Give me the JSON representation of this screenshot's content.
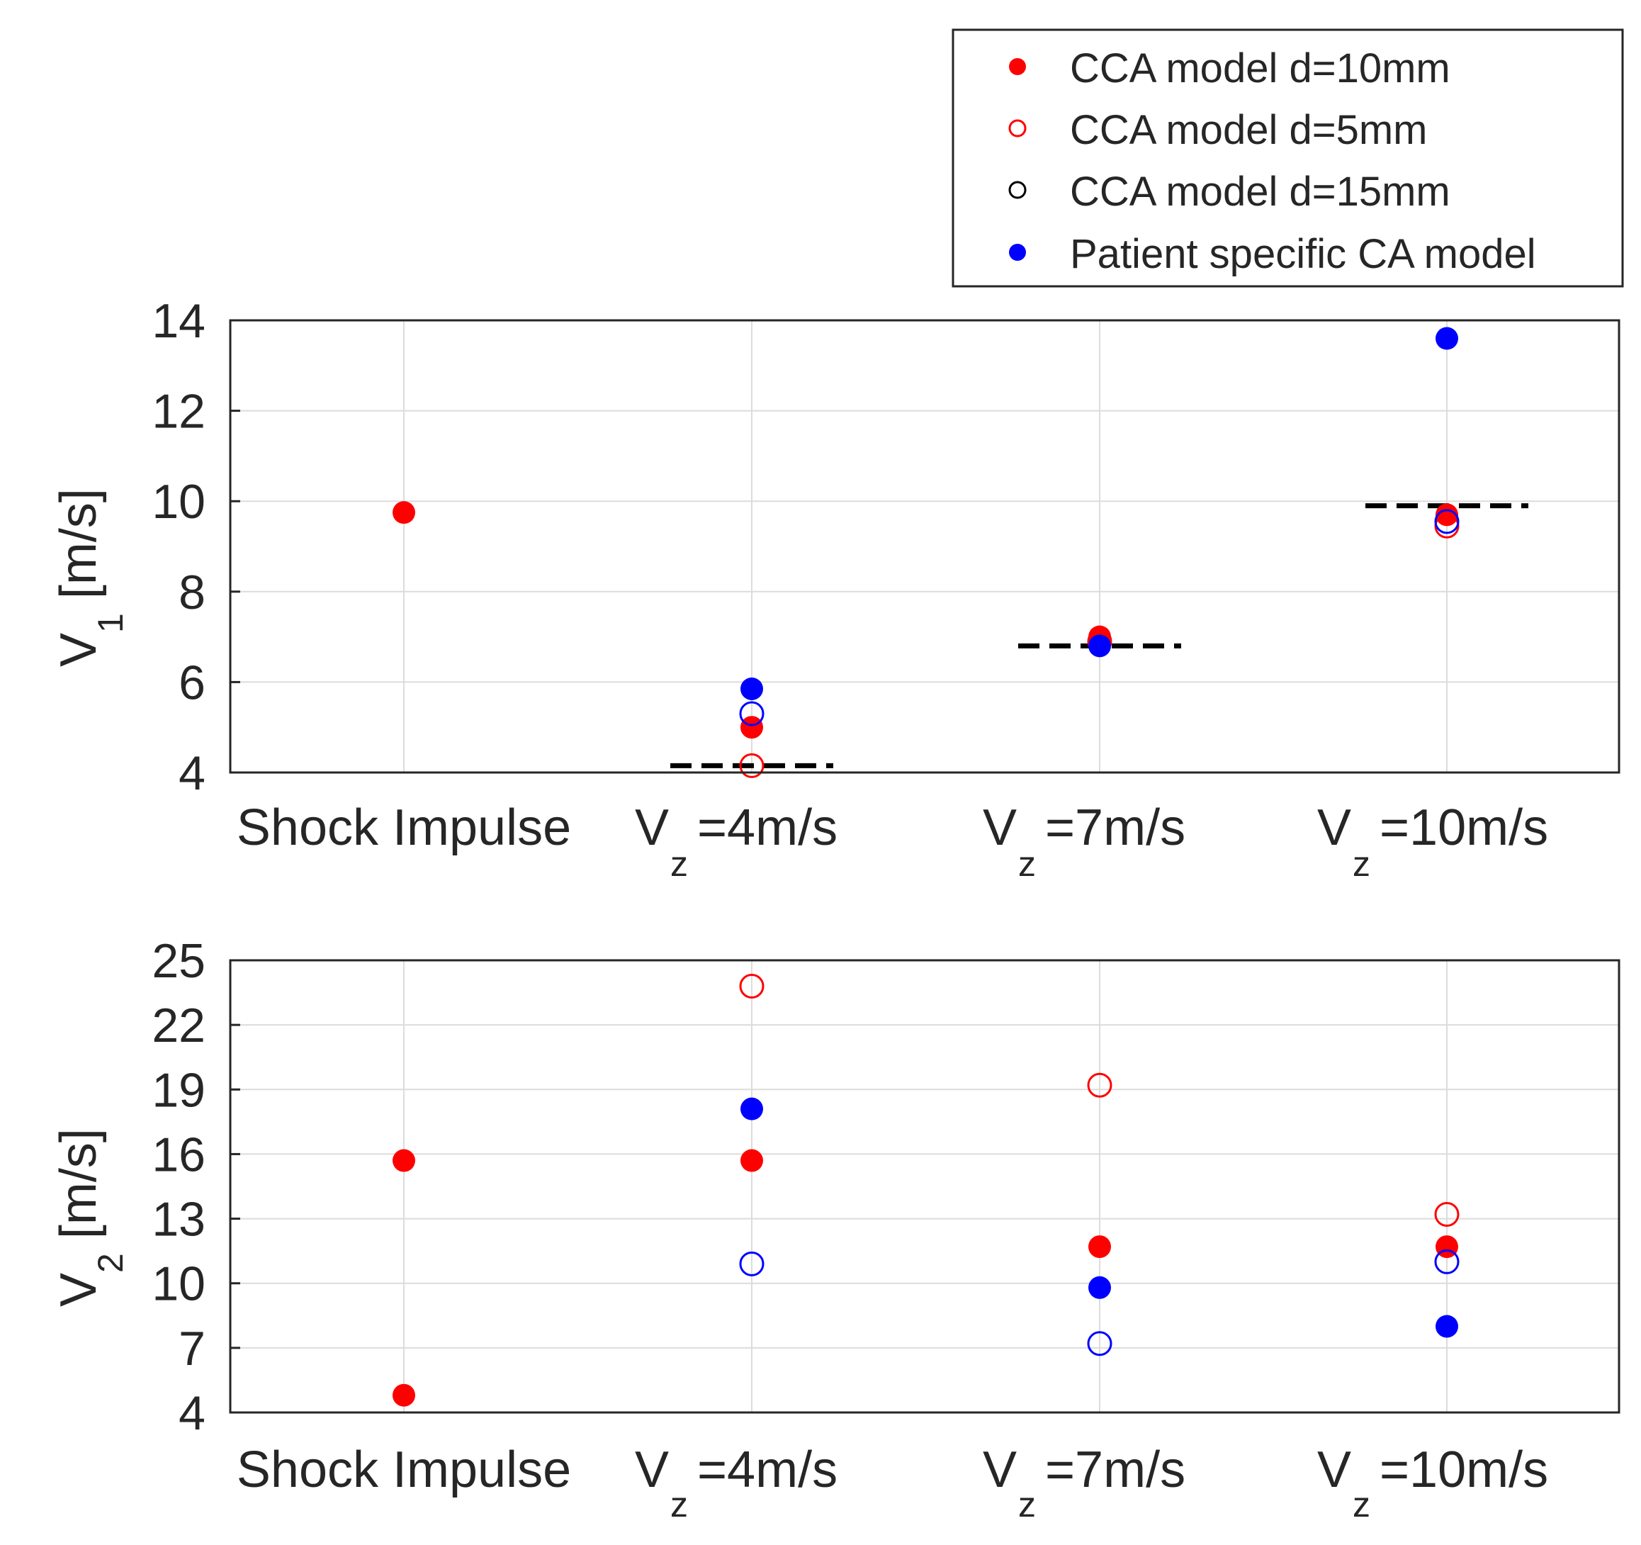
{
  "chart_data": [
    {
      "type": "scatter",
      "ylabel": {
        "main": "V",
        "sub": "1",
        "unit": " [m/s]"
      },
      "ylim": [
        4,
        14
      ],
      "yticks": [
        "4",
        "6",
        "8",
        "10",
        "12",
        "14"
      ],
      "categories": [
        {
          "main": "Shock Impulse",
          "sub": ""
        },
        {
          "main": "V",
          "sub": "z",
          "rest": "=4m/s"
        },
        {
          "main": "V",
          "sub": "z",
          "rest": "=7m/s"
        },
        {
          "main": "V",
          "sub": "z",
          "rest": "=10m/s"
        }
      ],
      "grid": true,
      "series": [
        {
          "name": "CCA model d=10mm",
          "color": "#ff0000",
          "filled": true,
          "points": [
            {
              "x": 0,
              "y": 9.75
            },
            {
              "x": 1,
              "y": 5.0
            },
            {
              "x": 2,
              "y": 7.0
            },
            {
              "x": 3,
              "y": 9.7
            }
          ]
        },
        {
          "name": "CCA model d=5mm",
          "color": "#ff0000",
          "filled": false,
          "points": [
            {
              "x": 1,
              "y": 4.15
            },
            {
              "x": 2,
              "y": 6.9
            },
            {
              "x": 3,
              "y": 9.45
            }
          ]
        },
        {
          "name": "CCA model d=15mm",
          "color": "#000000",
          "filled": false,
          "points": []
        },
        {
          "name": "Patient specific CA model",
          "color": "#0000ff",
          "filled": true,
          "points": [
            {
              "x": 1,
              "y": 5.85
            },
            {
              "x": 2,
              "y": 6.8
            },
            {
              "x": 3,
              "y": 13.6
            }
          ]
        },
        {
          "name": "",
          "color": "#0000ff",
          "filled": false,
          "points": [
            {
              "x": 1,
              "y": 5.3
            },
            {
              "x": 3,
              "y": 9.55
            }
          ]
        }
      ],
      "reference_lines": [
        {
          "x": 1,
          "y": 4.15,
          "color": "#000000",
          "style": "dashed"
        },
        {
          "x": 2,
          "y": 6.8,
          "color": "#000000",
          "style": "dashed"
        },
        {
          "x": 3,
          "y": 9.9,
          "color": "#000000",
          "style": "dashed"
        }
      ]
    },
    {
      "type": "scatter",
      "ylabel": {
        "main": "V",
        "sub": "2",
        "unit": " [m/s]"
      },
      "ylim": [
        4,
        25
      ],
      "yticks": [
        "4",
        "7",
        "10",
        "13",
        "16",
        "19",
        "22",
        "25"
      ],
      "categories": [
        {
          "main": "Shock Impulse",
          "sub": ""
        },
        {
          "main": "V",
          "sub": "z",
          "rest": "=4m/s"
        },
        {
          "main": "V",
          "sub": "z",
          "rest": "=7m/s"
        },
        {
          "main": "V",
          "sub": "z",
          "rest": "=10m/s"
        }
      ],
      "grid": true,
      "series": [
        {
          "name": "CCA model d=10mm",
          "color": "#ff0000",
          "filled": true,
          "points": [
            {
              "x": 0,
              "y": 15.7
            },
            {
              "x": 0,
              "y": 4.8
            },
            {
              "x": 1,
              "y": 15.7
            },
            {
              "x": 2,
              "y": 11.7
            },
            {
              "x": 3,
              "y": 11.7
            }
          ]
        },
        {
          "name": "CCA model d=5mm",
          "color": "#ff0000",
          "filled": false,
          "points": [
            {
              "x": 1,
              "y": 23.8
            },
            {
              "x": 2,
              "y": 19.2
            },
            {
              "x": 3,
              "y": 13.2
            }
          ]
        },
        {
          "name": "CCA model d=15mm",
          "color": "#000000",
          "filled": false,
          "points": []
        },
        {
          "name": "Patient specific CA model",
          "color": "#0000ff",
          "filled": true,
          "points": [
            {
              "x": 1,
              "y": 18.1
            },
            {
              "x": 2,
              "y": 9.8
            },
            {
              "x": 3,
              "y": 8.0
            }
          ]
        },
        {
          "name": "",
          "color": "#0000ff",
          "filled": false,
          "points": [
            {
              "x": 1,
              "y": 10.9
            },
            {
              "x": 2,
              "y": 7.2
            },
            {
              "x": 3,
              "y": 11.0
            }
          ]
        }
      ],
      "reference_lines": []
    }
  ],
  "legend": {
    "placement": "top-right",
    "entries": [
      {
        "label": "CCA model d=10mm",
        "color": "#ff0000",
        "filled": true
      },
      {
        "label": "CCA model d=5mm",
        "color": "#ff0000",
        "filled": false
      },
      {
        "label": "CCA model d=15mm",
        "color": "#000000",
        "filled": false
      },
      {
        "label": "Patient specific CA model",
        "color": "#0000ff",
        "filled": true
      }
    ]
  }
}
